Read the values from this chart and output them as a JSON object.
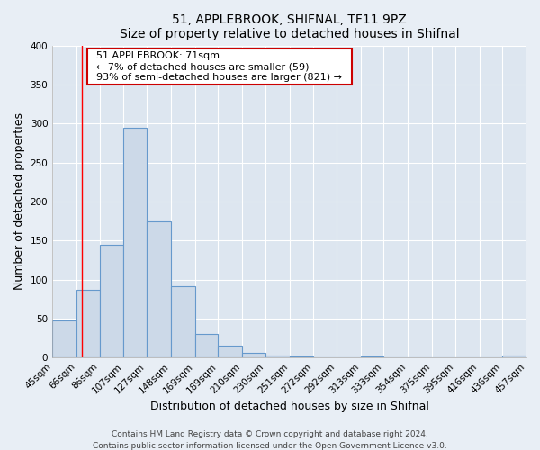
{
  "title1": "51, APPLEBROOK, SHIFNAL, TF11 9PZ",
  "title2": "Size of property relative to detached houses in Shifnal",
  "xlabel": "Distribution of detached houses by size in Shifnal",
  "ylabel": "Number of detached properties",
  "bin_edges": [
    45,
    66,
    86,
    107,
    127,
    148,
    169,
    189,
    210,
    230,
    251,
    272,
    292,
    313,
    333,
    354,
    375,
    395,
    416,
    436,
    457
  ],
  "bar_heights": [
    47,
    87,
    144,
    295,
    175,
    91,
    30,
    15,
    6,
    2,
    1,
    0,
    0,
    1,
    0,
    0,
    0,
    0,
    0,
    2
  ],
  "bar_color": "#ccd9e8",
  "bar_edge_color": "#6699cc",
  "ylim": [
    0,
    400
  ],
  "yticks": [
    0,
    50,
    100,
    150,
    200,
    250,
    300,
    350,
    400
  ],
  "red_line_x": 71,
  "annotation_title": "51 APPLEBROOK: 71sqm",
  "annotation_line1": "← 7% of detached houses are smaller (59)",
  "annotation_line2": "93% of semi-detached houses are larger (821) →",
  "annotation_box_facecolor": "#ffffff",
  "annotation_box_edgecolor": "#cc0000",
  "footer1": "Contains HM Land Registry data © Crown copyright and database right 2024.",
  "footer2": "Contains public sector information licensed under the Open Government Licence v3.0.",
  "fig_facecolor": "#e8eef5",
  "plot_facecolor": "#dde6f0",
  "grid_color": "#ffffff",
  "title_fontsize": 10,
  "axis_label_fontsize": 9,
  "tick_fontsize": 7.5,
  "annotation_fontsize": 8,
  "footer_fontsize": 6.5
}
